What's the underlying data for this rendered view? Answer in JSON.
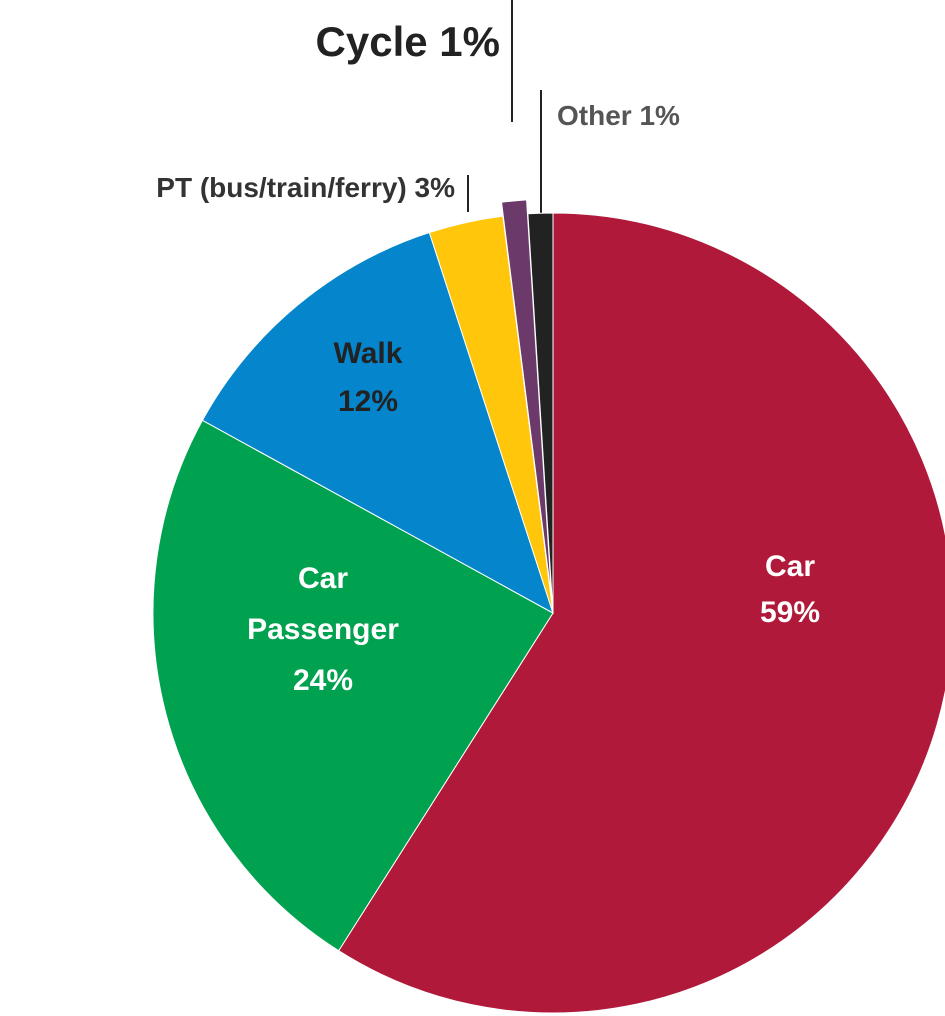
{
  "chart_data": {
    "type": "pie",
    "categories": [
      "Car",
      "Car Passenger",
      "Walk",
      "PT (bus/train/ferry)",
      "Cycle",
      "Other"
    ],
    "values": [
      59,
      24,
      12,
      3,
      1,
      1
    ],
    "value_labels": [
      "59%",
      "24%",
      "12%",
      "3%",
      "1%",
      "1%"
    ],
    "colors": [
      "#b0193a",
      "#00a14f",
      "#0585cc",
      "#ffc60b",
      "#6b3a6b",
      "#222222"
    ],
    "start_angle": 0,
    "direction": "clockwise"
  }
}
